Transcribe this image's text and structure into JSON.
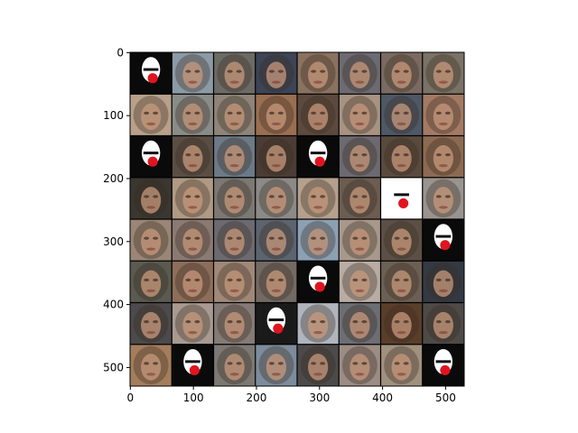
{
  "figure": {
    "background": "#ffffff",
    "frame_color": "#000000"
  },
  "image_grid": {
    "rows": 8,
    "cols": 8,
    "separator_color": "#000000",
    "x_range": [
      0,
      530
    ],
    "y_range": [
      530,
      0
    ],
    "tile_colors": [
      [
        "#0a0a0a",
        "#8c9aa6",
        "#6c6a64",
        "#3c4456",
        "#8a7260",
        "#6c6a72",
        "#7a6a62",
        "#7a7266"
      ],
      [
        "#b8a08a",
        "#8a8c88",
        "#8e8478",
        "#9a6e52",
        "#5c4a3e",
        "#a89282",
        "#4e5866",
        "#a47a64"
      ],
      [
        "#0a0a0a",
        "#5a4e44",
        "#6c7a88",
        "#4c3c36",
        "#0a0a0a",
        "#6c6a70",
        "#5a4a3e",
        "#8c6a52"
      ],
      [
        "#3a3630",
        "#b09a84",
        "#7c7874",
        "#8c8a88",
        "#b4a08c",
        "#6c5c52",
        "#ffffff",
        "#9a9490"
      ],
      [
        "#9a8676",
        "#8a7a72",
        "#6c6a70",
        "#5c6470",
        "#8ca0b4",
        "#a8988c",
        "#5c5046",
        "#0a0a0a"
      ],
      [
        "#5a5a50",
        "#8c6e5a",
        "#a08878",
        "#746a64",
        "#0a0a0a",
        "#b8aca4",
        "#6c6054",
        "#343a44"
      ],
      [
        "#4c4a4c",
        "#a89a90",
        "#847a76",
        "#1a1a1a",
        "#b0b4bc",
        "#6c6e74",
        "#5a3e2a",
        "#4e4a48"
      ],
      [
        "#a47e5c",
        "#0a0a0a",
        "#7c7874",
        "#7c8c9c",
        "#4c4a4a",
        "#9c8c84",
        "#a0907e",
        "#0a0a0a"
      ]
    ],
    "face_tiles": [
      [
        0,
        0
      ],
      [
        2,
        0
      ],
      [
        2,
        4
      ],
      [
        3,
        6
      ],
      [
        4,
        7
      ],
      [
        5,
        4
      ],
      [
        6,
        3
      ],
      [
        7,
        1
      ],
      [
        7,
        7
      ]
    ]
  },
  "axes": {
    "x_ticks": [
      "0",
      "100",
      "200",
      "300",
      "400",
      "500"
    ],
    "y_ticks": [
      "0",
      "100",
      "200",
      "300",
      "400",
      "500"
    ]
  }
}
